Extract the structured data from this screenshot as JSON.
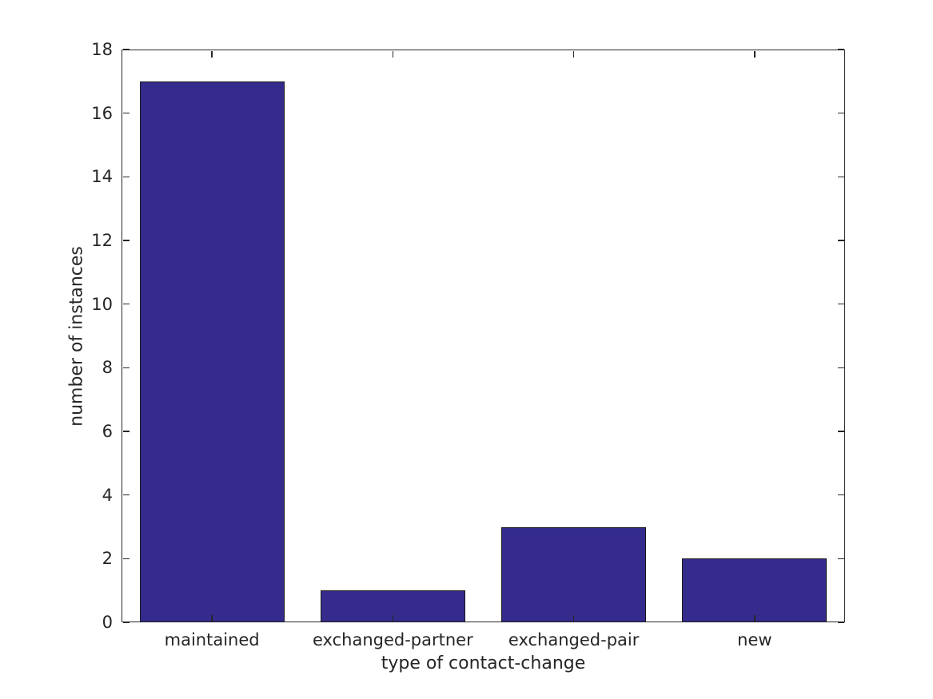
{
  "chart_data": {
    "type": "bar",
    "categories": [
      "maintained",
      "exchanged-partner",
      "exchanged-pair",
      "new"
    ],
    "values": [
      17,
      1,
      3,
      2
    ],
    "title": "",
    "xlabel": "type of contact-change",
    "ylabel": "number of instances",
    "ylim": [
      0,
      18
    ],
    "yticks": [
      0,
      2,
      4,
      6,
      8,
      10,
      12,
      14,
      16,
      18
    ],
    "bar_color": "#342b8c",
    "bar_edge_color": "#1a1a1a",
    "axis_color": "#262626",
    "text_color": "#262626",
    "bar_width_fraction": 0.8,
    "grid": false,
    "legend": null,
    "box": true,
    "tick_direction": "in"
  }
}
